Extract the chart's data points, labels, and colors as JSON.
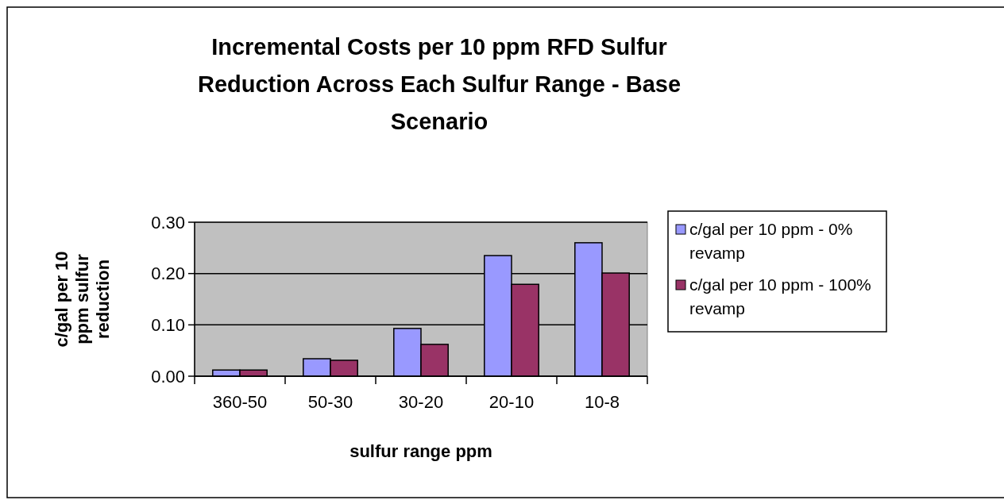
{
  "chart_data": {
    "type": "bar",
    "title": "Incremental Costs per 10 ppm RFD Sulfur Reduction Across Each Sulfur Range - Base Scenario",
    "xlabel": "sulfur range ppm",
    "ylabel": "c/gal per 10 ppm sulfur reduction",
    "categories": [
      "360-50",
      "50-30",
      "30-20",
      "20-10",
      "10-8"
    ],
    "series": [
      {
        "name": "c/gal per 10 ppm - 0% revamp",
        "color": "#9999ff",
        "values": [
          0.012,
          0.034,
          0.093,
          0.235,
          0.26
        ]
      },
      {
        "name": "c/gal per 10 ppm - 100% revamp",
        "color": "#993366",
        "values": [
          0.012,
          0.031,
          0.062,
          0.179,
          0.201
        ]
      }
    ],
    "ylim": [
      0,
      0.3
    ],
    "yticks": [
      {
        "value": 0,
        "label": "0.00"
      },
      {
        "value": 0.1,
        "label": "0.10"
      },
      {
        "value": 0.2,
        "label": "0.20"
      },
      {
        "value": 0.3,
        "label": "0.30"
      }
    ],
    "grid": "y",
    "legend": "right"
  }
}
